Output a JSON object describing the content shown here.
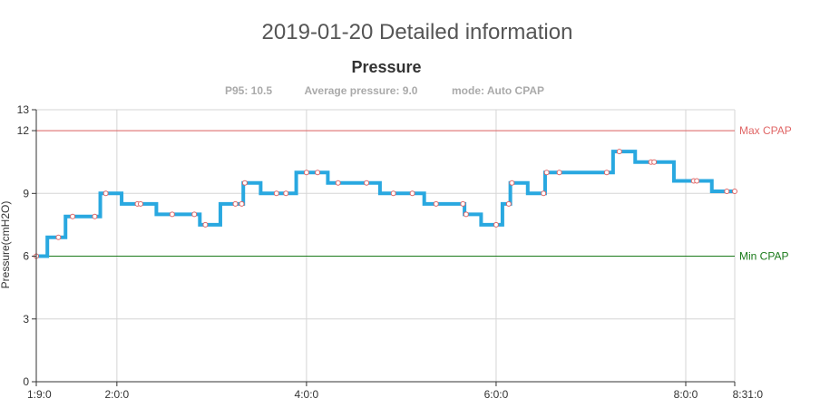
{
  "page": {
    "title": "2019-01-20 Detailed information"
  },
  "chart_data": {
    "type": "line",
    "step": true,
    "title": "Pressure",
    "subtitle": {
      "p95": "P95: 10.5",
      "average": "Average pressure: 9.0",
      "mode": "mode: Auto CPAP"
    },
    "ylabel": "Pressure(cmH2O)",
    "xlabel": "",
    "ylim": [
      0,
      13
    ],
    "yticks": [
      0,
      3,
      6,
      9,
      12,
      13
    ],
    "xticks": [
      {
        "label": "1:9:0",
        "t": "1:09"
      },
      {
        "label": "2:0:0",
        "t": "2:00"
      },
      {
        "label": "4:0:0",
        "t": "4:00"
      },
      {
        "label": "6:0:0",
        "t": "6:00"
      },
      {
        "label": "8:0:0",
        "t": "8:00"
      },
      {
        "label": "8:31:0",
        "t": "8:31"
      }
    ],
    "grid": true,
    "reference_lines": [
      {
        "name": "Max CPAP",
        "value": 12,
        "color": "#e06666"
      },
      {
        "name": "Min CPAP",
        "value": 6,
        "color": "#1a7a1a"
      }
    ],
    "line_color": "#29a8e0",
    "marker_color": "#e06666",
    "series": [
      {
        "points": [
          {
            "t": "1:09",
            "y": 6.0
          },
          {
            "t": "1:23",
            "y": 6.9
          },
          {
            "t": "1:32",
            "y": 7.9
          },
          {
            "t": "1:46",
            "y": 7.9
          },
          {
            "t": "1:53",
            "y": 9.0
          },
          {
            "t": "2:13",
            "y": 8.5
          },
          {
            "t": "2:15",
            "y": 8.5
          },
          {
            "t": "2:35",
            "y": 8.0
          },
          {
            "t": "2:49",
            "y": 8.0
          },
          {
            "t": "2:56",
            "y": 7.5
          },
          {
            "t": "3:15",
            "y": 8.5
          },
          {
            "t": "3:19",
            "y": 8.5
          },
          {
            "t": "3:21",
            "y": 9.5
          },
          {
            "t": "3:41",
            "y": 9.0
          },
          {
            "t": "3:47",
            "y": 9.0
          },
          {
            "t": "4:00",
            "y": 10.0
          },
          {
            "t": "4:07",
            "y": 10.0
          },
          {
            "t": "4:20",
            "y": 9.5
          },
          {
            "t": "4:38",
            "y": 9.5
          },
          {
            "t": "4:55",
            "y": 9.0
          },
          {
            "t": "5:07",
            "y": 9.0
          },
          {
            "t": "5:22",
            "y": 8.5
          },
          {
            "t": "5:39",
            "y": 8.5
          },
          {
            "t": "5:41",
            "y": 8.0
          },
          {
            "t": "6:00",
            "y": 7.5
          },
          {
            "t": "6:08",
            "y": 8.5
          },
          {
            "t": "6:10",
            "y": 9.5
          },
          {
            "t": "6:30",
            "y": 9.0
          },
          {
            "t": "6:32",
            "y": 10.0
          },
          {
            "t": "6:40",
            "y": 10.0
          },
          {
            "t": "7:10",
            "y": 10.0
          },
          {
            "t": "7:18",
            "y": 11.0
          },
          {
            "t": "7:38",
            "y": 10.5
          },
          {
            "t": "7:40",
            "y": 10.5
          },
          {
            "t": "8:05",
            "y": 9.6
          },
          {
            "t": "8:07",
            "y": 9.6
          },
          {
            "t": "8:26",
            "y": 9.1
          },
          {
            "t": "8:31",
            "y": 9.1
          }
        ]
      }
    ]
  }
}
